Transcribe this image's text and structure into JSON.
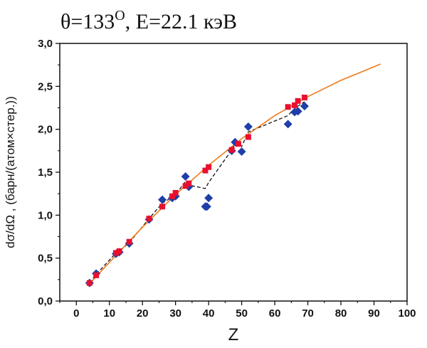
{
  "chart_data": {
    "type": "scatter",
    "title": "θ=133°, E=22.1 кэВ",
    "title_main": "θ=133",
    "title_sup": "O",
    "title_rest": ", E=22.1 кэВ",
    "xlabel": "Z",
    "ylabel": "dσ/dΩ , (барн/(атом×стер.))",
    "xlim": [
      -5,
      100
    ],
    "ylim": [
      0,
      3.0
    ],
    "x_ticks": [
      "0",
      "10",
      "20",
      "30",
      "40",
      "50",
      "60",
      "70",
      "80",
      "90",
      "100"
    ],
    "y_ticks": [
      "0,0",
      "0,5",
      "1,0",
      "1,5",
      "2,0",
      "2,5",
      "3,0"
    ],
    "grid": false,
    "colors": {
      "blue": "#1f3fa8",
      "red": "#e8102e",
      "orange": "#f07a1a",
      "black": "#111111"
    },
    "series": [
      {
        "marker": "diamond",
        "color": "blue",
        "points": [
          [
            4,
            0.21
          ],
          [
            6,
            0.32
          ],
          [
            12,
            0.55
          ],
          [
            13,
            0.57
          ],
          [
            16,
            0.67
          ],
          [
            22,
            0.95
          ],
          [
            26,
            1.18
          ],
          [
            29,
            1.2
          ],
          [
            30,
            1.22
          ],
          [
            33,
            1.45
          ],
          [
            34,
            1.33
          ],
          [
            39,
            1.1
          ],
          [
            39.5,
            1.1
          ],
          [
            40,
            1.2
          ],
          [
            47,
            1.75
          ],
          [
            48,
            1.85
          ],
          [
            50,
            1.74
          ],
          [
            52,
            2.03
          ],
          [
            64,
            2.06
          ],
          [
            66,
            2.2
          ],
          [
            67,
            2.21
          ],
          [
            69,
            2.27
          ]
        ]
      },
      {
        "marker": "square",
        "color": "red",
        "points": [
          [
            4,
            0.21
          ],
          [
            6,
            0.3
          ],
          [
            12,
            0.56
          ],
          [
            13,
            0.58
          ],
          [
            16,
            0.69
          ],
          [
            22,
            0.96
          ],
          [
            26,
            1.1
          ],
          [
            29,
            1.22
          ],
          [
            30,
            1.26
          ],
          [
            33,
            1.34
          ],
          [
            34,
            1.37
          ],
          [
            39,
            1.52
          ],
          [
            40,
            1.56
          ],
          [
            47,
            1.76
          ],
          [
            49,
            1.83
          ],
          [
            52,
            1.91
          ],
          [
            64,
            2.26
          ],
          [
            66,
            2.28
          ],
          [
            67,
            2.33
          ],
          [
            69,
            2.37
          ]
        ]
      },
      {
        "type": "line",
        "color": "black",
        "dash": true,
        "points": [
          [
            4,
            0.21
          ],
          [
            6,
            0.31
          ],
          [
            12,
            0.56
          ],
          [
            13,
            0.58
          ],
          [
            16,
            0.68
          ],
          [
            22,
            0.96
          ],
          [
            26,
            1.14
          ],
          [
            29,
            1.21
          ],
          [
            30,
            1.24
          ],
          [
            33,
            1.39
          ],
          [
            34,
            1.35
          ],
          [
            39,
            1.31
          ],
          [
            40,
            1.38
          ],
          [
            47,
            1.76
          ],
          [
            48,
            1.84
          ],
          [
            50,
            1.8
          ],
          [
            52,
            1.97
          ],
          [
            64,
            2.16
          ],
          [
            66,
            2.24
          ],
          [
            67,
            2.27
          ],
          [
            69,
            2.32
          ]
        ]
      },
      {
        "type": "line",
        "color": "orange",
        "points": [
          [
            4,
            0.2
          ],
          [
            10,
            0.45
          ],
          [
            20,
            0.86
          ],
          [
            30,
            1.24
          ],
          [
            40,
            1.58
          ],
          [
            50,
            1.89
          ],
          [
            60,
            2.16
          ],
          [
            70,
            2.38
          ],
          [
            80,
            2.57
          ],
          [
            92,
            2.76
          ]
        ]
      }
    ]
  }
}
